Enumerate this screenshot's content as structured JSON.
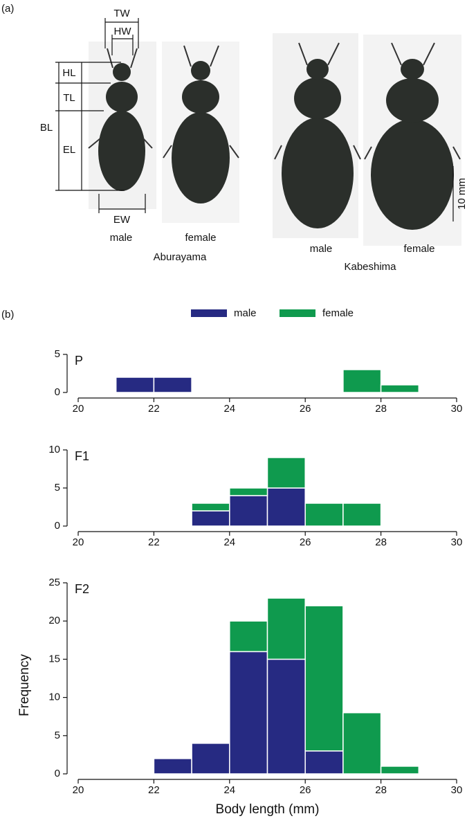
{
  "panel_labels": [
    "(a)",
    "(b)"
  ],
  "panel_a": {
    "measures": {
      "TW": "TW",
      "HW": "HW",
      "HL": "HL",
      "TL": "TL",
      "BL": "BL",
      "EL": "EL",
      "EW": "EW"
    },
    "aburayama": {
      "name": "Aburayama",
      "male": "male",
      "female": "female"
    },
    "kabeshima": {
      "name": "Kabeshima",
      "male": "male",
      "female": "female"
    },
    "scale": "10 mm"
  },
  "chart_data": [
    {
      "type": "histogram",
      "title": "P",
      "bins": [
        20,
        21,
        22,
        23,
        24,
        25,
        26,
        27,
        28,
        29,
        30
      ],
      "series": [
        {
          "name": "male",
          "color": "#262a82",
          "values": [
            0,
            2,
            2,
            0,
            0,
            0,
            0,
            0,
            0,
            0
          ]
        },
        {
          "name": "female",
          "color": "#0f9a4e",
          "values": [
            0,
            0,
            0,
            0,
            0,
            0,
            0,
            3,
            1,
            0
          ]
        }
      ],
      "xlim": [
        20,
        30
      ],
      "xticks": [
        20,
        22,
        24,
        26,
        28,
        30
      ],
      "ylim": [
        0,
        5
      ],
      "yticks": [
        0,
        5
      ],
      "stacked": true
    },
    {
      "type": "histogram",
      "title": "F1",
      "bins": [
        20,
        21,
        22,
        23,
        24,
        25,
        26,
        27,
        28,
        29,
        30
      ],
      "series": [
        {
          "name": "male",
          "color": "#262a82",
          "values": [
            0,
            0,
            0,
            2,
            4,
            5,
            0,
            0,
            0,
            0
          ]
        },
        {
          "name": "female",
          "color": "#0f9a4e",
          "values": [
            0,
            0,
            0,
            1,
            1,
            4,
            3,
            3,
            0,
            0
          ]
        }
      ],
      "xlim": [
        20,
        30
      ],
      "xticks": [
        20,
        22,
        24,
        26,
        28,
        30
      ],
      "ylim": [
        0,
        10
      ],
      "yticks": [
        0,
        5,
        10
      ],
      "stacked": true
    },
    {
      "type": "histogram",
      "title": "F2",
      "bins": [
        20,
        21,
        22,
        23,
        24,
        25,
        26,
        27,
        28,
        29,
        30
      ],
      "series": [
        {
          "name": "male",
          "color": "#262a82",
          "values": [
            0,
            0,
            2,
            4,
            16,
            15,
            3,
            0,
            0,
            0
          ]
        },
        {
          "name": "female",
          "color": "#0f9a4e",
          "values": [
            0,
            0,
            0,
            0,
            4,
            8,
            19,
            8,
            1,
            0
          ]
        }
      ],
      "xlim": [
        20,
        30
      ],
      "xticks": [
        20,
        22,
        24,
        26,
        28,
        30
      ],
      "ylim": [
        0,
        25
      ],
      "yticks": [
        0,
        5,
        10,
        15,
        20,
        25
      ],
      "stacked": true,
      "x_label": "Body length (mm)",
      "y_label": "Frequency"
    }
  ]
}
